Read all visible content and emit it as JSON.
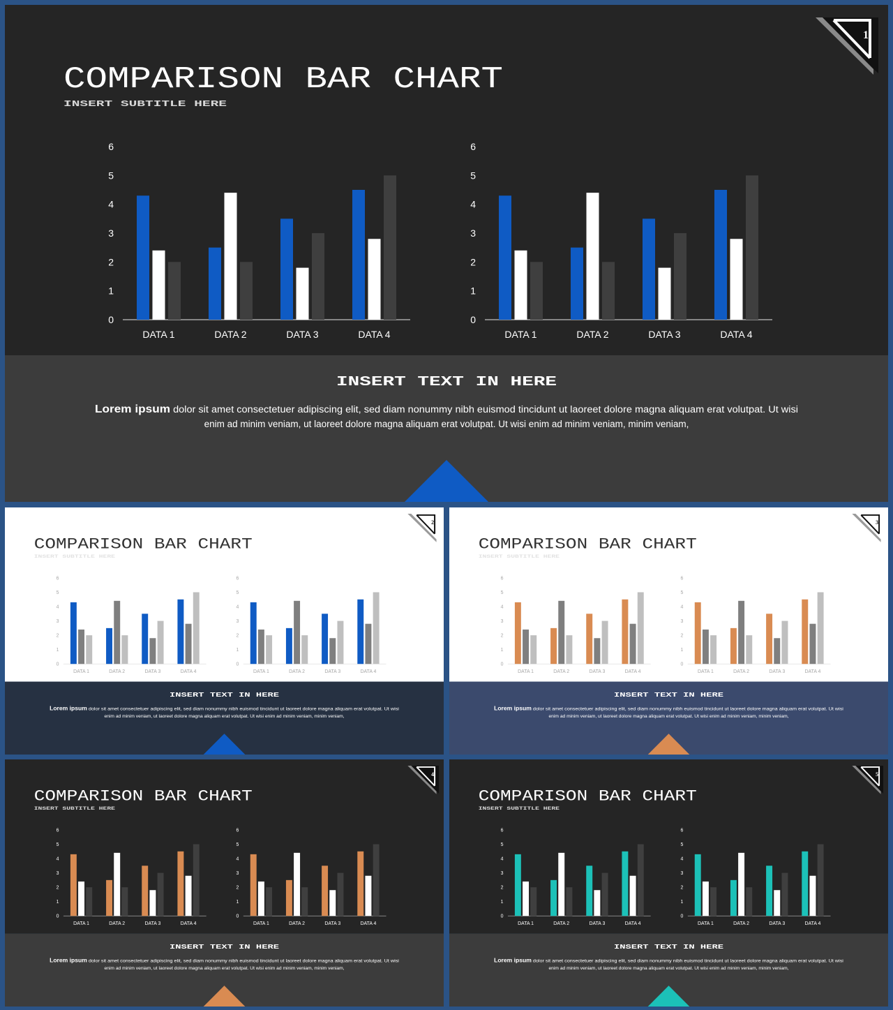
{
  "slides": [
    {
      "number": "1",
      "title": "COMPARISON BAR CHART",
      "subtitle": "INSERT SUBTITLE HERE",
      "text_heading": "INSERT TEXT IN HERE",
      "body_bold": "Lorem ipsum",
      "body_line1": " dolor sit amet consectetuer adipiscing elit, sed diam nonummy nibh euismod tincidunt ut laoreet dolore magna aliquam erat volutpat. Ut wisi",
      "body_line2": "enim ad minim veniam, ut laoreet dolore magna aliquam erat volutpat. Ut wisi enim ad minim veniam, minim veniam,",
      "theme": {
        "top_bg": "#252525",
        "bottom_bg": "#3c3c3c",
        "title": "#ffffff",
        "subtitle": "#d8d8d8",
        "axis_text": "#ffffff",
        "axis_line": "#bfbfbf",
        "heading": "#ffffff",
        "body": "#ffffff",
        "accent": "#0f5bc4",
        "series_colors": [
          "#0f5bc4",
          "#ffffff",
          "#3f3f3f"
        ],
        "badge_bg": "#111111",
        "badge_stroke": "#ffffff",
        "badge_stripe": "#8a8a8a"
      }
    },
    {
      "number": "2",
      "title": "COMPARISON BAR CHART",
      "subtitle": "INSERT SUBTITLE HERE",
      "text_heading": "INSERT TEXT IN HERE",
      "body_bold": "Lorem ipsum",
      "body_line1": " dolor sit amet consectetuer adipiscing elit, sed diam nonummy nibh euismod tincidunt ut laoreet dolore magna aliquam erat volutpat. Ut wisi",
      "body_line2": "enim ad minim veniam, ut laoreet dolore magna aliquam erat volutpat. Ut wisi enim ad minim veniam, minim veniam,",
      "theme": {
        "top_bg": "#ffffff",
        "bottom_bg": "#263142",
        "title": "#333333",
        "subtitle": "#e2e2e2",
        "axis_text": "#a6a6a6",
        "axis_line": "#d9d9d9",
        "heading": "#ffffff",
        "body": "#ffffff",
        "accent": "#0f5bc4",
        "series_colors": [
          "#0f5bc4",
          "#7f7f7f",
          "#bfbfbf"
        ],
        "badge_bg": "#ffffff",
        "badge_stroke": "#111111",
        "badge_stripe": "#9a9a9a"
      }
    },
    {
      "number": "3",
      "title": "COMPARISON BAR CHART",
      "subtitle": "INSERT SUBTITLE HERE",
      "text_heading": "INSERT TEXT IN HERE",
      "body_bold": "Lorem ipsum",
      "body_line1": " dolor sit amet consectetuer adipiscing elit, sed diam nonummy nibh euismod tincidunt ut laoreet dolore magna aliquam erat volutpat. Ut wisi",
      "body_line2": "enim ad minim veniam, ut laoreet dolore magna aliquam erat volutpat. Ut wisi enim ad minim veniam, minim veniam,",
      "theme": {
        "top_bg": "#ffffff",
        "bottom_bg": "#3b4a6d",
        "title": "#333333",
        "subtitle": "#e2e2e2",
        "axis_text": "#a6a6a6",
        "axis_line": "#d9d9d9",
        "heading": "#ffffff",
        "body": "#ffffff",
        "accent": "#d98b52",
        "series_colors": [
          "#d98b52",
          "#7f7f7f",
          "#bfbfbf"
        ],
        "badge_bg": "#ffffff",
        "badge_stroke": "#111111",
        "badge_stripe": "#9a9a9a"
      }
    },
    {
      "number": "4",
      "title": "COMPARISON BAR CHART",
      "subtitle": "INSERT SUBTITLE HERE",
      "text_heading": "INSERT TEXT IN HERE",
      "body_bold": "Lorem ipsum",
      "body_line1": " dolor sit amet consectetuer adipiscing elit, sed diam nonummy nibh euismod tincidunt ut laoreet dolore magna aliquam erat volutpat. Ut wisi",
      "body_line2": "enim ad minim veniam, ut laoreet dolore magna aliquam erat volutpat. Ut wisi enim ad minim veniam, minim veniam,",
      "theme": {
        "top_bg": "#252525",
        "bottom_bg": "#3c3c3c",
        "title": "#ffffff",
        "subtitle": "#d8d8d8",
        "axis_text": "#ffffff",
        "axis_line": "#bfbfbf",
        "heading": "#ffffff",
        "body": "#ffffff",
        "accent": "#d98b52",
        "series_colors": [
          "#d98b52",
          "#ffffff",
          "#3f3f3f"
        ],
        "badge_bg": "#111111",
        "badge_stroke": "#ffffff",
        "badge_stripe": "#8a8a8a"
      }
    },
    {
      "number": "5",
      "title": "COMPARISON BAR CHART",
      "subtitle": "INSERT SUBTITLE HERE",
      "text_heading": "INSERT TEXT IN HERE",
      "body_bold": "Lorem ipsum",
      "body_line1": " dolor sit amet consectetuer adipiscing elit, sed diam nonummy nibh euismod tincidunt ut laoreet dolore magna aliquam erat volutpat. Ut wisi",
      "body_line2": "enim ad minim veniam, ut laoreet dolore magna aliquam erat volutpat. Ut wisi enim ad minim veniam, minim veniam,",
      "theme": {
        "top_bg": "#252525",
        "bottom_bg": "#3c3c3c",
        "title": "#ffffff",
        "subtitle": "#d8d8d8",
        "axis_text": "#ffffff",
        "axis_line": "#bfbfbf",
        "heading": "#ffffff",
        "body": "#ffffff",
        "accent": "#1cc1b8",
        "series_colors": [
          "#1cc1b8",
          "#ffffff",
          "#3f3f3f"
        ],
        "badge_bg": "#111111",
        "badge_stroke": "#ffffff",
        "badge_stripe": "#8a8a8a"
      }
    }
  ],
  "chart_data": [
    {
      "type": "bar",
      "categories": [
        "DATA 1",
        "DATA 2",
        "DATA 3",
        "DATA 4"
      ],
      "series": [
        {
          "values": [
            4.3,
            2.5,
            3.5,
            4.5
          ]
        },
        {
          "values": [
            2.4,
            4.4,
            1.8,
            2.8
          ]
        },
        {
          "values": [
            2.0,
            2.0,
            3.0,
            5.0
          ]
        }
      ],
      "ylim": [
        0,
        6
      ],
      "yticks": [
        "0",
        "1",
        "2",
        "3",
        "4",
        "5",
        "6"
      ],
      "grid": false
    },
    {
      "type": "bar",
      "categories": [
        "DATA 1",
        "DATA 2",
        "DATA 3",
        "DATA 4"
      ],
      "series": [
        {
          "values": [
            4.3,
            2.5,
            3.5,
            4.5
          ]
        },
        {
          "values": [
            2.4,
            4.4,
            1.8,
            2.8
          ]
        },
        {
          "values": [
            2.0,
            2.0,
            3.0,
            5.0
          ]
        }
      ],
      "ylim": [
        0,
        6
      ],
      "yticks": [
        "0",
        "1",
        "2",
        "3",
        "4",
        "5",
        "6"
      ],
      "grid": false
    }
  ]
}
